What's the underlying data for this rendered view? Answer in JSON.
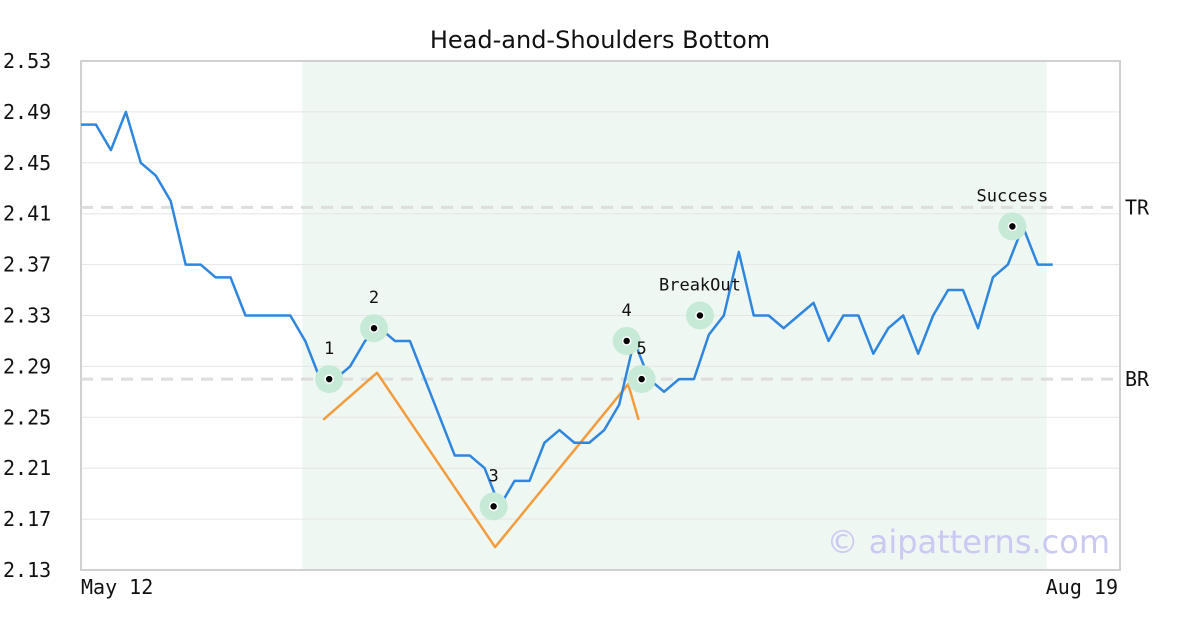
{
  "chart_data": {
    "type": "line",
    "title": "Head-and-Shoulders Bottom",
    "watermark": "© aipatterns.com",
    "ylim": [
      2.13,
      2.53
    ],
    "y_ticks": [
      "2.53",
      "2.49",
      "2.45",
      "2.41",
      "2.37",
      "2.33",
      "2.29",
      "2.25",
      "2.21",
      "2.17",
      "2.13"
    ],
    "x_tick_labels": [
      "May 12",
      "Aug 19"
    ],
    "grid": true,
    "series": [
      {
        "values": [
          2.48,
          2.48,
          2.46,
          2.49,
          2.45,
          2.44,
          2.42,
          2.37,
          2.37,
          2.36,
          2.36,
          2.33,
          2.33,
          2.33,
          2.33,
          2.31,
          2.28,
          2.28,
          2.29,
          2.31,
          2.32,
          2.31,
          2.31,
          2.28,
          2.25,
          2.22,
          2.22,
          2.21,
          2.18,
          2.2,
          2.2,
          2.23,
          2.24,
          2.23,
          2.23,
          2.24,
          2.26,
          2.31,
          2.28,
          2.27,
          2.28,
          2.28,
          2.315,
          2.33,
          2.38,
          2.33,
          2.33,
          2.32,
          2.33,
          2.34,
          2.31,
          2.33,
          2.33,
          2.3,
          2.32,
          2.33,
          2.3,
          2.33,
          2.35,
          2.35,
          2.32,
          2.36,
          2.37,
          2.4,
          2.37,
          2.37
        ],
        "color": "#2e86de"
      }
    ],
    "pattern_line": {
      "points": [
        [
          16.2,
          2.248
        ],
        [
          19.8,
          2.285
        ],
        [
          27.7,
          2.148
        ],
        [
          36.6,
          2.276
        ],
        [
          37.3,
          2.248
        ]
      ],
      "color": "#f39c3d"
    },
    "pattern_zone": {
      "x_start": 14.8,
      "x_end": 64.6,
      "color": "#eef7f2"
    },
    "levels": [
      {
        "label": "TR",
        "value": 2.415
      },
      {
        "label": "BR",
        "value": 2.28
      }
    ],
    "annotations": [
      {
        "label": "1",
        "x": 16.6,
        "y": 2.28,
        "pos": "above"
      },
      {
        "label": "2",
        "x": 19.6,
        "y": 2.32,
        "pos": "above"
      },
      {
        "label": "3",
        "x": 27.6,
        "y": 2.18,
        "pos": "above"
      },
      {
        "label": "4",
        "x": 36.5,
        "y": 2.31,
        "pos": "above"
      },
      {
        "label": "5",
        "x": 37.5,
        "y": 2.28,
        "pos": "above"
      },
      {
        "label": "BreakOut",
        "x": 41.4,
        "y": 2.33,
        "pos": "above"
      },
      {
        "label": "Success",
        "x": 62.3,
        "y": 2.4,
        "pos": "above"
      }
    ],
    "colors": {
      "line": "#2e86de",
      "pattern": "#f39c3d",
      "marker_halo": "#c6ead5",
      "level": "#dddddd",
      "zone": "#eef7f2"
    }
  }
}
